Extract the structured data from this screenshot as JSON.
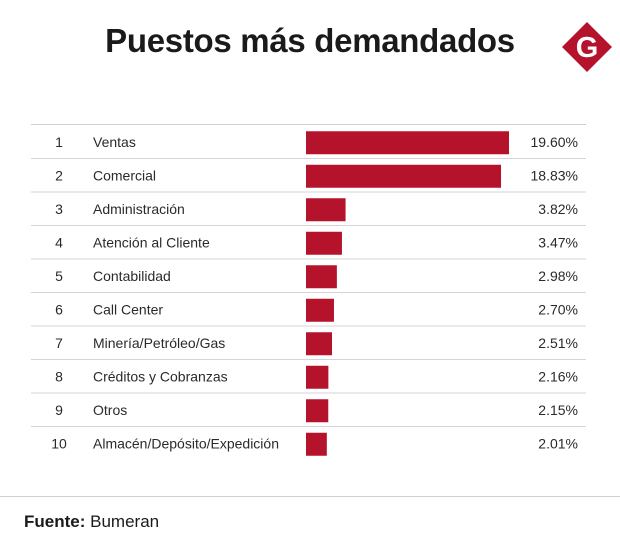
{
  "title": "Puestos más demandados",
  "logo_letter": "G",
  "colors": {
    "bar": "#b5122b",
    "logo": "#b5122b"
  },
  "footer": {
    "label": "Fuente:",
    "source": "Bumeran"
  },
  "chart_data": {
    "type": "bar",
    "orientation": "horizontal",
    "ranks": [
      "1",
      "2",
      "3",
      "4",
      "5",
      "6",
      "7",
      "8",
      "9",
      "10"
    ],
    "categories": [
      "Ventas",
      "Comercial",
      "Administración",
      "Atención al Cliente",
      "Contabilidad",
      "Call Center",
      "Minería/Petróleo/Gas",
      "Créditos y Cobranzas",
      "Otros",
      "Almacén/Depósito/Expedición"
    ],
    "values": [
      19.6,
      18.83,
      3.82,
      3.47,
      2.98,
      2.7,
      2.51,
      2.16,
      2.15,
      2.01
    ],
    "value_labels": [
      "19.60%",
      "18.83%",
      "3.82%",
      "3.47%",
      "2.98%",
      "2.70%",
      "2.51%",
      "2.16%",
      "2.15%",
      "2.01%"
    ],
    "unit": "%",
    "title": "Puestos más demandados",
    "xlabel": "",
    "ylabel": "",
    "xlim": [
      0,
      19.6
    ],
    "grid": false
  }
}
